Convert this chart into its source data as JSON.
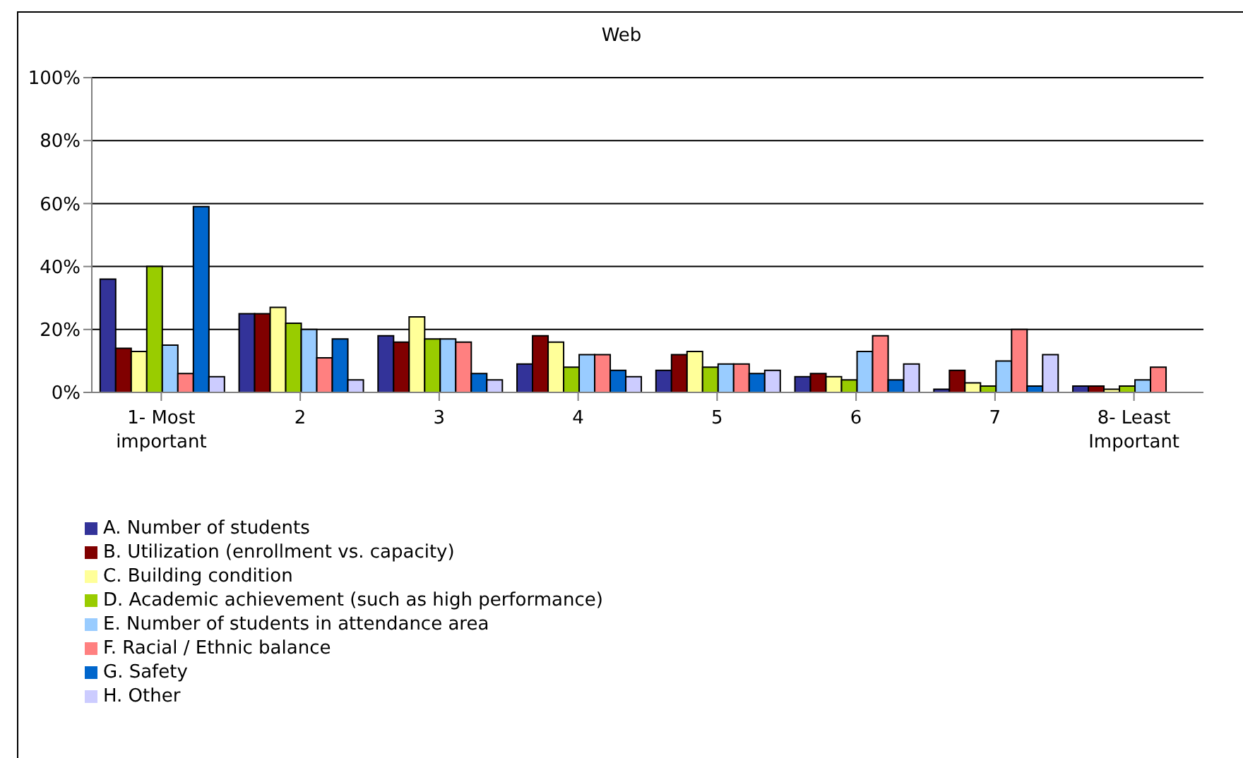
{
  "chart_data": {
    "type": "bar",
    "title": "Web",
    "categories": [
      "1- Most important",
      "2",
      "3",
      "4",
      "5",
      "6",
      "7",
      "8- Least Important"
    ],
    "series": [
      {
        "name": "A.  Number of students",
        "color": "#333399",
        "values": [
          36,
          25,
          18,
          9,
          7,
          5,
          1,
          2
        ]
      },
      {
        "name": "B.  Utilization (enrollment vs. capacity)",
        "color": "#800000",
        "values": [
          14,
          25,
          16,
          18,
          12,
          6,
          7,
          2
        ]
      },
      {
        "name": "C.  Building condition",
        "color": "#ffff99",
        "values": [
          13,
          27,
          24,
          16,
          13,
          5,
          3,
          1
        ]
      },
      {
        "name": "D.  Academic achievement (such as high performance)",
        "color": "#99cc00",
        "values": [
          40,
          22,
          17,
          8,
          8,
          4,
          2,
          2
        ]
      },
      {
        "name": "E.  Number of students in attendance area",
        "color": "#99ccff",
        "values": [
          15,
          20,
          17,
          12,
          9,
          13,
          10,
          4
        ]
      },
      {
        "name": "F.  Racial / Ethnic balance",
        "color": "#ff8080",
        "values": [
          6,
          11,
          16,
          12,
          9,
          18,
          20,
          8
        ]
      },
      {
        "name": "G.  Safety",
        "color": "#0066cc",
        "values": [
          59,
          17,
          6,
          7,
          6,
          4,
          2,
          null
        ]
      },
      {
        "name": "H. Other",
        "color": "#ccccff",
        "values": [
          5,
          4,
          4,
          5,
          7,
          9,
          12,
          null
        ]
      }
    ],
    "ylim": [
      0,
      100
    ],
    "yticks": [
      {
        "value": 0,
        "label": "0%"
      },
      {
        "value": 20,
        "label": "20%"
      },
      {
        "value": 40,
        "label": "40%"
      },
      {
        "value": 60,
        "label": "60%"
      },
      {
        "value": 80,
        "label": "80%"
      },
      {
        "value": 100,
        "label": "100%"
      }
    ],
    "grid": "y",
    "legend": "bottom left"
  }
}
